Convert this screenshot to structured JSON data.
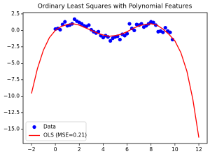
{
  "chart_data": {
    "type": "scatter",
    "title": "Ordinary Least Squares with Polynomial Features",
    "xlim": [
      -2.7,
      12.7
    ],
    "ylim": [
      -17.2,
      2.7
    ],
    "xticks": [
      {
        "value": -2,
        "label": "−2"
      },
      0,
      2,
      4,
      6,
      8,
      10,
      12
    ],
    "yticks": [
      {
        "value": -15,
        "label": "−15.0"
      },
      {
        "value": -12.5,
        "label": "−12.5"
      },
      {
        "value": -10,
        "label": "−10.0"
      },
      {
        "value": -7.5,
        "label": "−7.5"
      },
      {
        "value": -5,
        "label": "−5.0"
      },
      {
        "value": -2.5,
        "label": "−2.5"
      },
      {
        "value": 0,
        "label": "0.0"
      },
      2.5
    ],
    "legend": "lower left",
    "series": [
      {
        "name": "Data",
        "type": "scatter",
        "color": "#0000ff",
        "x": [
          0.0,
          0.2,
          0.4,
          0.6,
          0.8,
          1.0,
          1.2,
          1.4,
          1.6,
          1.8,
          2.0,
          2.2,
          2.4,
          2.6,
          2.8,
          3.0,
          3.2,
          3.4,
          3.6,
          3.8,
          4.0,
          4.2,
          4.4,
          4.6,
          4.8,
          5.0,
          5.2,
          5.4,
          5.6,
          5.8,
          6.0,
          6.2,
          6.4,
          6.6,
          6.8,
          7.0,
          7.2,
          7.4,
          7.6,
          7.8,
          8.0,
          8.2,
          8.4,
          8.6,
          8.8,
          9.0,
          9.2,
          9.4,
          9.6,
          9.8
        ],
        "values": [
          0.2,
          0.3,
          0.1,
          0.9,
          1.3,
          0.7,
          0.8,
          1.0,
          1.7,
          1.4,
          1.2,
          1.0,
          0.7,
          0.6,
          0.8,
          0.1,
          -0.2,
          -0.4,
          -0.2,
          -0.8,
          -1.1,
          -0.8,
          -1.0,
          -1.6,
          -1.2,
          -1.0,
          -0.9,
          -1.4,
          -0.6,
          -0.8,
          -0.5,
          1.0,
          0.3,
          0.0,
          0.9,
          0.8,
          1.0,
          0.5,
          0.7,
          1.0,
          1.3,
          1.2,
          0.8,
          -0.2,
          -0.1,
          -0.3,
          0.4,
          -0.1,
          -0.3,
          -1.4
        ]
      },
      {
        "name": "OLS (MSE=0.21)",
        "type": "line",
        "color": "#ff0000",
        "x": [
          -2,
          -1.5,
          -1,
          -0.5,
          0,
          0.5,
          1,
          1.5,
          2,
          2.5,
          3,
          3.5,
          4,
          4.5,
          5,
          5.5,
          6,
          6.5,
          7,
          7.5,
          8,
          8.5,
          9,
          9.5,
          10,
          10.5,
          11,
          11.5,
          12
        ],
        "values": [
          -9.6,
          -5.8,
          -3.0,
          -1.1,
          0.0,
          0.6,
          0.9,
          1.0,
          0.8,
          0.4,
          0.0,
          -0.4,
          -0.7,
          -0.9,
          -0.8,
          -0.6,
          -0.2,
          0.3,
          0.7,
          0.9,
          1.0,
          0.8,
          0.2,
          -0.6,
          -1.6,
          -3.4,
          -6.2,
          -10.5,
          -16.3
        ]
      }
    ]
  }
}
